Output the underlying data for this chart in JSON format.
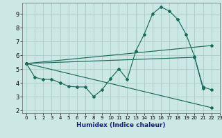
{
  "xlabel": "Humidex (Indice chaleur)",
  "xlim": [
    -0.5,
    23
  ],
  "ylim": [
    1.8,
    9.8
  ],
  "yticks": [
    2,
    3,
    4,
    5,
    6,
    7,
    8,
    9
  ],
  "xticks": [
    0,
    1,
    2,
    3,
    4,
    5,
    6,
    7,
    8,
    9,
    10,
    11,
    12,
    13,
    14,
    15,
    16,
    17,
    18,
    19,
    20,
    21,
    22,
    23
  ],
  "bg_color": "#cce8e4",
  "grid_color": "#aaccc8",
  "line_color": "#1a6b5a",
  "curves": [
    {
      "x": [
        0,
        1,
        2,
        3,
        4,
        5,
        6,
        7,
        8,
        9,
        10,
        11,
        12,
        13,
        14,
        15,
        16,
        17,
        18,
        19,
        20,
        21,
        22
      ],
      "y": [
        5.4,
        4.4,
        4.25,
        4.25,
        4.0,
        3.75,
        3.7,
        3.7,
        3.0,
        3.5,
        4.3,
        5.0,
        4.25,
        6.3,
        7.5,
        9.0,
        9.5,
        9.2,
        8.6,
        7.5,
        5.9,
        3.7,
        3.5
      ]
    },
    {
      "x": [
        0,
        22
      ],
      "y": [
        5.4,
        6.7
      ]
    },
    {
      "x": [
        0,
        20,
        21
      ],
      "y": [
        5.4,
        5.85,
        3.6
      ]
    },
    {
      "x": [
        0,
        22
      ],
      "y": [
        5.4,
        2.2
      ]
    }
  ]
}
